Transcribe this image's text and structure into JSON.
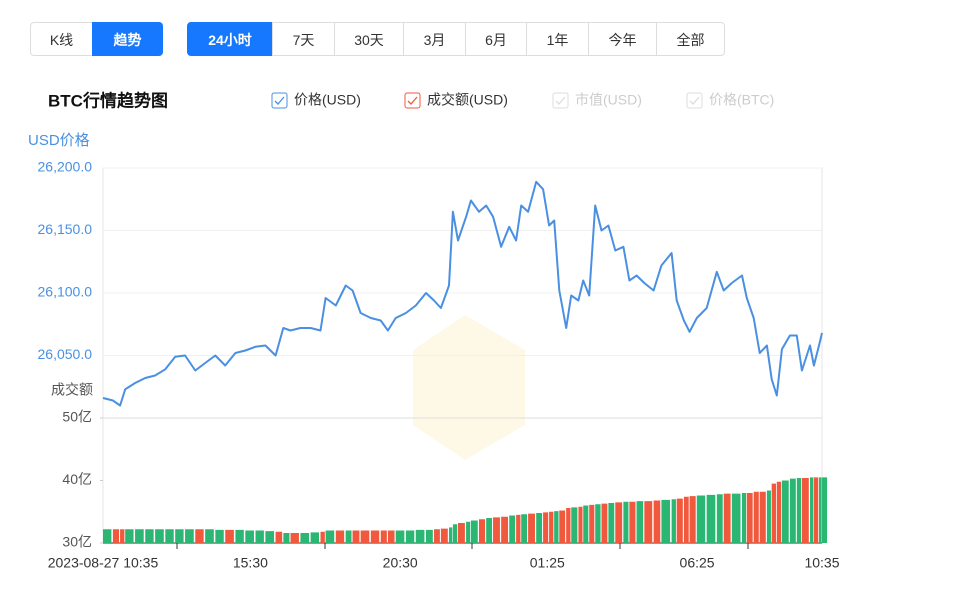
{
  "tabs": {
    "items": [
      "K线",
      "趋势"
    ],
    "active": 1
  },
  "ranges": {
    "items": [
      "24小时",
      "7天",
      "30天",
      "3月",
      "6月",
      "1年",
      "今年",
      "全部"
    ],
    "active": 0
  },
  "chart_data": {
    "type": "line",
    "title": "BTC行情趋势图",
    "y_label": "USD价格",
    "y2_label": "成交额",
    "inactive_legend": [
      "市值(USD)",
      "价格(BTC)"
    ],
    "x": [
      0,
      0.33,
      0.57,
      0.74,
      1.07,
      1.41,
      1.74,
      2.08,
      2.41,
      2.74,
      3.08,
      3.41,
      3.75,
      4.08,
      4.42,
      4.75,
      5.09,
      5.42,
      5.76,
      6.02,
      6.26,
      6.59,
      6.93,
      7.26,
      7.43,
      7.77,
      8.1,
      8.33,
      8.6,
      8.94,
      9.27,
      9.51,
      9.77,
      10.11,
      10.44,
      10.78,
      11.05,
      11.28,
      11.55,
      11.68,
      11.85,
      12.12,
      12.28,
      12.55,
      12.79,
      13.02,
      13.29,
      13.56,
      13.79,
      13.96,
      14.19,
      14.46,
      14.69,
      14.89,
      15.06,
      15.23,
      15.46,
      15.63,
      15.87,
      16.03,
      16.23,
      16.43,
      16.64,
      16.87,
      17.1,
      17.37,
      17.57,
      17.81,
      18.07,
      18.38,
      18.64,
      18.98,
      19.15,
      19.39,
      19.58,
      19.82,
      20.15,
      20.49,
      20.72,
      20.99,
      21.33,
      21.49,
      21.72,
      21.92,
      22.16,
      22.32,
      22.49,
      22.66,
      22.93,
      23.16,
      23.33,
      23.6,
      23.73,
      23.9,
      24
    ],
    "xlim": [
      0,
      24
    ],
    "xticks": [
      {
        "value": 0,
        "label": "2023-08-27 10:35"
      },
      {
        "value": 4.92,
        "label": "15:30"
      },
      {
        "value": 9.92,
        "label": "20:30"
      },
      {
        "value": 14.83,
        "label": "01:25"
      },
      {
        "value": 19.83,
        "label": "06:25"
      },
      {
        "value": 24,
        "label": "10:35"
      }
    ],
    "ylim": [
      26000,
      26200
    ],
    "yticks": [
      {
        "value": 26050,
        "label": "26,050.0"
      },
      {
        "value": 26100,
        "label": "26,100.0"
      },
      {
        "value": 26150,
        "label": "26,150.0"
      },
      {
        "value": 26200,
        "label": "26,200.0"
      }
    ],
    "y2lim": [
      30,
      50
    ],
    "y2ticks": [
      {
        "value": 30,
        "label": "30亿"
      },
      {
        "value": 40,
        "label": "40亿"
      },
      {
        "value": 50,
        "label": "50亿"
      }
    ],
    "up_color": "#2bb673",
    "down_color": "#f0593e",
    "series": [
      {
        "name": "价格(USD)",
        "color": "#4a90e2",
        "values": [
          26016,
          26014,
          26010,
          26023,
          26028,
          26032,
          26034,
          26039,
          26049,
          26050,
          26038,
          26044,
          26050,
          26042,
          26052,
          26054,
          26057,
          26058,
          26050,
          26072,
          26070,
          26072,
          26072,
          26070,
          26096,
          26090,
          26106,
          26102,
          26084,
          26080,
          26078,
          26070,
          26080,
          26084,
          26090,
          26100,
          26094,
          26088,
          26106,
          26165,
          26142,
          26161,
          26174,
          26165,
          26170,
          26161,
          26137,
          26153,
          26142,
          26170,
          26165,
          26189,
          26183,
          26154,
          26158,
          26102,
          26072,
          26098,
          26094,
          26110,
          26098,
          26170,
          26150,
          26154,
          26134,
          26137,
          26110,
          26114,
          26108,
          26102,
          26122,
          26132,
          26094,
          26078,
          26069,
          26080,
          26088,
          26117,
          26102,
          26108,
          26114,
          26096,
          26080,
          26052,
          26058,
          26031,
          26018,
          26055,
          26066,
          26066,
          26038,
          26058,
          26042,
          26058,
          26068
        ]
      },
      {
        "name": "成交额(USD)",
        "color": "#f0593e",
        "axis": "y2",
        "values": [
          32.2,
          32.2,
          32.2,
          32.2,
          32.2,
          32.2,
          32.2,
          32.2,
          32.2,
          32.2,
          32.2,
          32.2,
          32.1,
          32.1,
          32.1,
          32.0,
          32.0,
          31.9,
          31.8,
          31.6,
          31.6,
          31.6,
          31.7,
          31.8,
          32.0,
          32.0,
          32.0,
          32.0,
          32.0,
          32.0,
          32.0,
          32.0,
          32.0,
          32.0,
          32.1,
          32.1,
          32.2,
          32.3,
          32.5,
          33.0,
          33.2,
          33.4,
          33.6,
          33.8,
          34.0,
          34.1,
          34.2,
          34.4,
          34.5,
          34.6,
          34.7,
          34.8,
          34.9,
          35.0,
          35.1,
          35.2,
          35.6,
          35.7,
          35.8,
          36.0,
          36.1,
          36.2,
          36.3,
          36.4,
          36.5,
          36.6,
          36.6,
          36.7,
          36.7,
          36.8,
          36.9,
          37.0,
          37.1,
          37.4,
          37.5,
          37.6,
          37.7,
          37.8,
          37.9,
          37.9,
          38.0,
          38.0,
          38.2,
          38.2,
          38.4,
          39.5,
          39.8,
          40.0,
          40.3,
          40.4,
          40.4,
          40.5,
          40.5,
          40.5,
          40.5
        ]
      }
    ]
  }
}
